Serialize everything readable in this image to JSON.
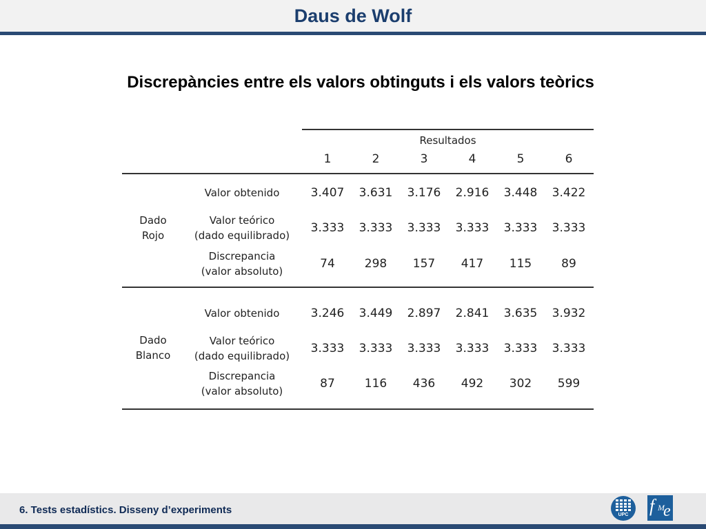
{
  "header": {
    "title": "Daus de Wolf"
  },
  "subtitle": "Discrepàncies entre els valors obtinguts i els valors teòrics",
  "table": {
    "group_header": "Resultados",
    "columns": [
      "1",
      "2",
      "3",
      "4",
      "5",
      "6"
    ],
    "groups": [
      {
        "label_line1": "Dado",
        "label_line2": "Rojo",
        "rows": [
          {
            "label_line1": "Valor obtenido",
            "label_line2": "",
            "values": [
              "3.407",
              "3.631",
              "3.176",
              "2.916",
              "3.448",
              "3.422"
            ]
          },
          {
            "label_line1": "Valor teórico",
            "label_line2": "(dado equilibrado)",
            "values": [
              "3.333",
              "3.333",
              "3.333",
              "3.333",
              "3.333",
              "3.333"
            ]
          },
          {
            "label_line1": "Discrepancia",
            "label_line2": "(valor absoluto)",
            "values": [
              "74",
              "298",
              "157",
              "417",
              "115",
              "89"
            ]
          }
        ]
      },
      {
        "label_line1": "Dado",
        "label_line2": "Blanco",
        "rows": [
          {
            "label_line1": "Valor obtenido",
            "label_line2": "",
            "values": [
              "3.246",
              "3.449",
              "2.897",
              "2.841",
              "3.635",
              "3.932"
            ]
          },
          {
            "label_line1": "Valor teórico",
            "label_line2": "(dado equilibrado)",
            "values": [
              "3.333",
              "3.333",
              "3.333",
              "3.333",
              "3.333",
              "3.333"
            ]
          },
          {
            "label_line1": "Discrepancia",
            "label_line2": "(valor absoluto)",
            "values": [
              "87",
              "116",
              "436",
              "492",
              "302",
              "599"
            ]
          }
        ]
      }
    ]
  },
  "footer": {
    "text": "6. Tests estadístics. Disseny d’experiments",
    "logo_upc_text": "UPC",
    "logo_fme_letters": [
      "f",
      "M",
      "e"
    ]
  },
  "colors": {
    "accent": "#1b3e6e",
    "rule": "#2a4a74",
    "logo": "#1d5f9c"
  }
}
